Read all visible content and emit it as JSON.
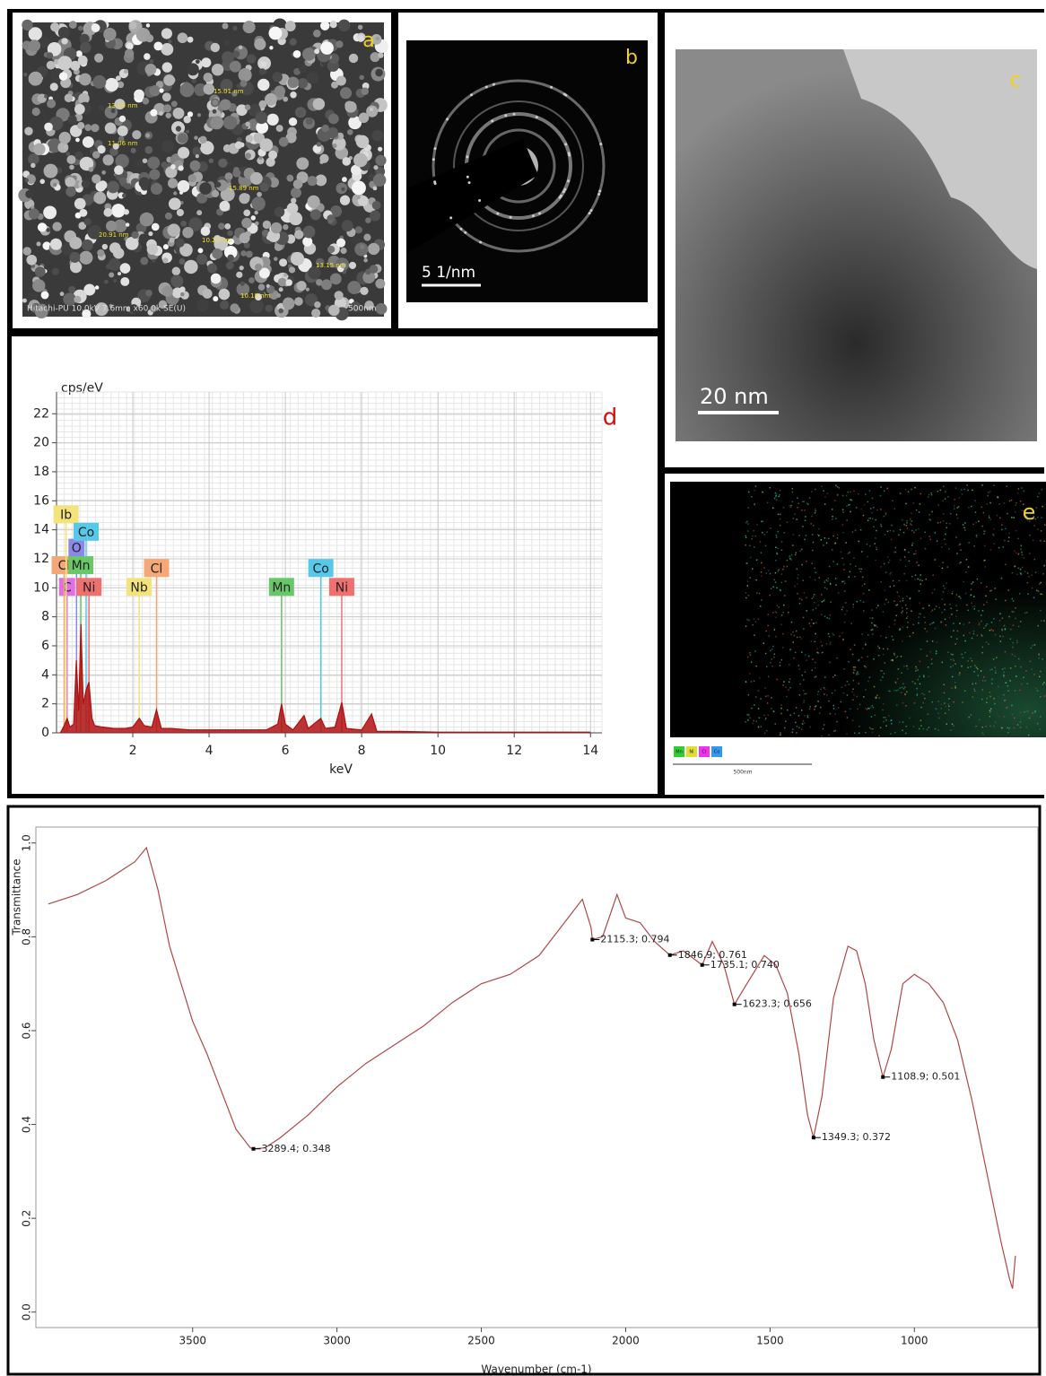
{
  "panels": {
    "a": {
      "letter": "a",
      "measurements": [
        "13.09 nm",
        "15.01 nm",
        "11.06 nm",
        "15.89 nm",
        "20.91 nm",
        "10.25 nm",
        "13.15 nm",
        "10.19 nm"
      ],
      "info": "Hitachi-PU 10.0kV 7.6mm x60.0k SE(U)",
      "scale": "500nm"
    },
    "b": {
      "letter": "b",
      "scale": "5 1/nm"
    },
    "c": {
      "letter": "c",
      "scale": "20 nm"
    },
    "e": {
      "letter": "e",
      "legend": [
        "Mn",
        "Ni",
        "Cl",
        "Co"
      ],
      "scale": "500nm"
    }
  },
  "chart_data": [
    {
      "type": "line",
      "panel_label": "d",
      "y_label": "cps/eV",
      "x_label": "keV",
      "xlim": [
        0,
        14.3
      ],
      "ylim": [
        0,
        23.5
      ],
      "xticks": [
        2,
        4,
        6,
        8,
        10,
        12,
        14
      ],
      "yticks": [
        0,
        2,
        4,
        6,
        8,
        10,
        12,
        14,
        16,
        18,
        20,
        22
      ],
      "grid": true,
      "color": "#b01010",
      "x": [
        0.1,
        0.2,
        0.28,
        0.35,
        0.45,
        0.52,
        0.58,
        0.64,
        0.7,
        0.78,
        0.85,
        0.93,
        1.0,
        1.2,
        1.5,
        1.8,
        2.0,
        2.17,
        2.3,
        2.5,
        2.62,
        2.75,
        3.0,
        3.5,
        4.0,
        4.5,
        5.0,
        5.5,
        5.8,
        5.9,
        6.0,
        6.2,
        6.49,
        6.6,
        6.93,
        7.05,
        7.3,
        7.48,
        7.6,
        8.0,
        8.26,
        8.4,
        9,
        10,
        11,
        12,
        13,
        14
      ],
      "values": [
        0,
        0.5,
        1,
        0.4,
        0.6,
        5,
        1.5,
        7.5,
        2,
        3,
        3.5,
        1,
        0.5,
        0.4,
        0.3,
        0.3,
        0.4,
        1,
        0.5,
        0.4,
        1.6,
        0.3,
        0.3,
        0.2,
        0.2,
        0.2,
        0.2,
        0.2,
        0.6,
        2,
        0.6,
        0.2,
        1.2,
        0.3,
        1,
        0.3,
        0.4,
        2.1,
        0.3,
        0.2,
        1.3,
        0.1,
        0.1,
        0.05,
        0.05,
        0.05,
        0.05,
        0.05
      ],
      "peak_markers": [
        {
          "label": "C",
          "energy": 0.277,
          "height": 10,
          "color": "#e070e0"
        },
        {
          "label": "Cl",
          "energy": 0.2,
          "height": 11.5,
          "color": "#f4a878"
        },
        {
          "label": "Ib",
          "energy": 0.25,
          "height": 15,
          "color": "#f4e27a"
        },
        {
          "label": "O",
          "energy": 0.525,
          "height": 12.7,
          "color": "#8c88e8"
        },
        {
          "label": "Co",
          "energy": 0.776,
          "height": 13.8,
          "color": "#58c8e8"
        },
        {
          "label": "Mn",
          "energy": 0.637,
          "height": 11.5,
          "color": "#68c868"
        },
        {
          "label": "Ni",
          "energy": 0.851,
          "height": 10,
          "color": "#f07070"
        },
        {
          "label": "Nb",
          "energy": 2.166,
          "height": 10,
          "color": "#f4e27a"
        },
        {
          "label": "Cl",
          "energy": 2.622,
          "height": 11.3,
          "color": "#f4a878"
        },
        {
          "label": "Mn",
          "energy": 5.899,
          "height": 10,
          "color": "#68c868"
        },
        {
          "label": "Co",
          "energy": 6.93,
          "height": 11.3,
          "color": "#58c8e8"
        },
        {
          "label": "Ni",
          "energy": 7.478,
          "height": 10,
          "color": "#f07070"
        }
      ]
    },
    {
      "type": "line",
      "y_label": "Transmittance",
      "x_label": "Wavenumber (cm-1)",
      "xlim": [
        4043,
        572
      ],
      "ylim": [
        -0.033,
        1.034
      ],
      "xticks": [
        3500,
        3000,
        2500,
        2000,
        1500,
        1000
      ],
      "yticks": [
        {
          "value": 0,
          "label": "0.0"
        },
        0.2,
        0.4,
        0.6,
        0.8,
        {
          "value": 1,
          "label": "1.0"
        }
      ],
      "grid": false,
      "color": "#b04848",
      "x": [
        4000,
        3900,
        3800,
        3700,
        3660,
        3620,
        3580,
        3500,
        3450,
        3400,
        3350,
        3300,
        3289.4,
        3250,
        3200,
        3100,
        3000,
        2900,
        2800,
        2700,
        2600,
        2500,
        2400,
        2300,
        2250,
        2200,
        2150,
        2120,
        2115.3,
        2080,
        2030,
        2000,
        1950,
        1900,
        1846.9,
        1800,
        1735.1,
        1700,
        1660,
        1623.3,
        1580,
        1520,
        1480,
        1440,
        1400,
        1370,
        1349.3,
        1320,
        1280,
        1230,
        1200,
        1170,
        1140,
        1108.9,
        1080,
        1040,
        1000,
        950,
        900,
        850,
        800,
        750,
        700,
        670,
        660,
        650
      ],
      "values": [
        0.87,
        0.89,
        0.92,
        0.96,
        0.99,
        0.9,
        0.78,
        0.62,
        0.55,
        0.47,
        0.39,
        0.35,
        0.348,
        0.35,
        0.37,
        0.42,
        0.48,
        0.53,
        0.57,
        0.61,
        0.66,
        0.7,
        0.72,
        0.76,
        0.8,
        0.84,
        0.88,
        0.82,
        0.794,
        0.8,
        0.89,
        0.84,
        0.83,
        0.79,
        0.761,
        0.77,
        0.74,
        0.79,
        0.74,
        0.656,
        0.7,
        0.76,
        0.74,
        0.68,
        0.55,
        0.42,
        0.372,
        0.46,
        0.67,
        0.78,
        0.77,
        0.7,
        0.58,
        0.501,
        0.56,
        0.7,
        0.72,
        0.7,
        0.66,
        0.58,
        0.45,
        0.3,
        0.15,
        0.07,
        0.05,
        0.12
      ],
      "annotations": [
        {
          "x": 3289.4,
          "y": 0.348,
          "label": "3289.4; 0.348"
        },
        {
          "x": 2115.3,
          "y": 0.794,
          "label": "2115.3; 0.794"
        },
        {
          "x": 1846.9,
          "y": 0.761,
          "label": "1846.9; 0.761"
        },
        {
          "x": 1735.1,
          "y": 0.74,
          "label": "1735.1; 0.740"
        },
        {
          "x": 1623.3,
          "y": 0.656,
          "label": "1623.3; 0.656"
        },
        {
          "x": 1349.3,
          "y": 0.372,
          "label": "1349.3; 0.372"
        },
        {
          "x": 1108.9,
          "y": 0.501,
          "label": "1108.9; 0.501"
        }
      ]
    }
  ]
}
